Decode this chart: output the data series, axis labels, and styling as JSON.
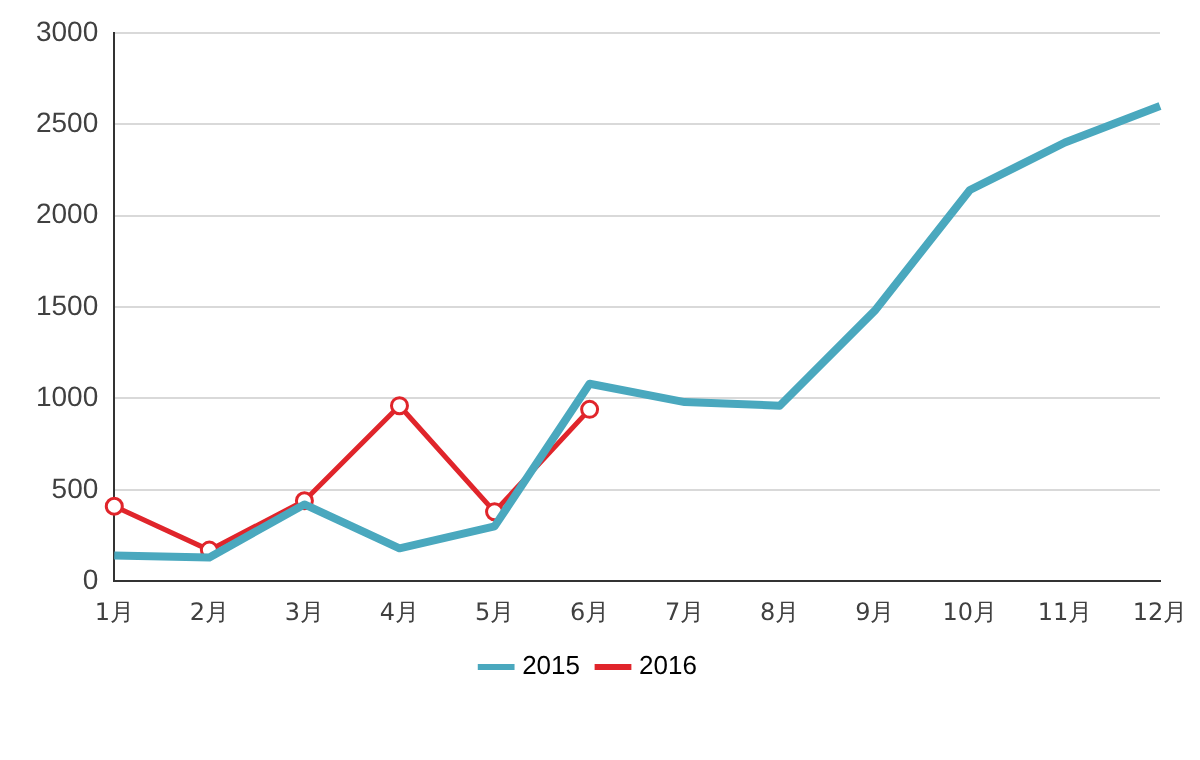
{
  "chart_data": {
    "type": "line",
    "categories": [
      "1月",
      "2月",
      "3月",
      "4月",
      "5月",
      "6月",
      "7月",
      "8月",
      "9月",
      "10月",
      "11月",
      "12月"
    ],
    "series": [
      {
        "name": "2015",
        "color": "#4aa8be",
        "marker": "none",
        "values": [
          140,
          130,
          420,
          180,
          300,
          1080,
          980,
          960,
          1480,
          2140,
          2400,
          2600
        ]
      },
      {
        "name": "2016",
        "color": "#e0252b",
        "marker": "circle",
        "values": [
          410,
          170,
          440,
          960,
          380,
          940,
          null,
          null,
          null,
          null,
          null,
          null
        ]
      }
    ],
    "ylim": [
      0,
      3000
    ],
    "yticks": [
      0,
      500,
      1000,
      1500,
      2000,
      2500,
      3000
    ],
    "grid": "y",
    "legend": "bottom",
    "line_style": "solid"
  }
}
